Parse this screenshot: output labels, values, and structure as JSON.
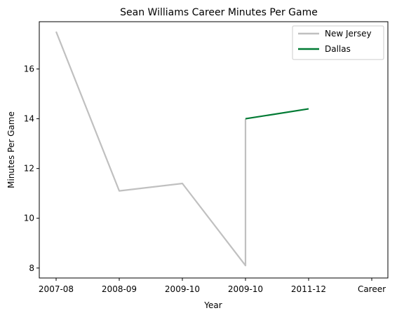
{
  "chart_data": {
    "type": "line",
    "title": "Sean Williams  Career Minutes Per Game",
    "xlabel": "Year",
    "ylabel": "Minutes Per Game",
    "categories": [
      "2007-08",
      "2008-09",
      "2009-10",
      "2009-10",
      "2011-12",
      "Career"
    ],
    "ylim": [
      7.6,
      17.9
    ],
    "yticks": [
      8,
      10,
      12,
      14,
      16
    ],
    "grid": false,
    "legend": "top-right",
    "series": [
      {
        "name": "New Jersey",
        "color": "#c0c0c0",
        "points": [
          {
            "x": 0,
            "y": 17.5
          },
          {
            "x": 1,
            "y": 11.1
          },
          {
            "x": 2,
            "y": 11.4
          },
          {
            "x": 3,
            "y": 8.1
          },
          {
            "x": 3,
            "y": 14.0
          }
        ]
      },
      {
        "name": "Dallas",
        "color": "#007a33",
        "points": [
          {
            "x": 3,
            "y": 14.0
          },
          {
            "x": 4,
            "y": 14.4
          }
        ]
      }
    ]
  }
}
